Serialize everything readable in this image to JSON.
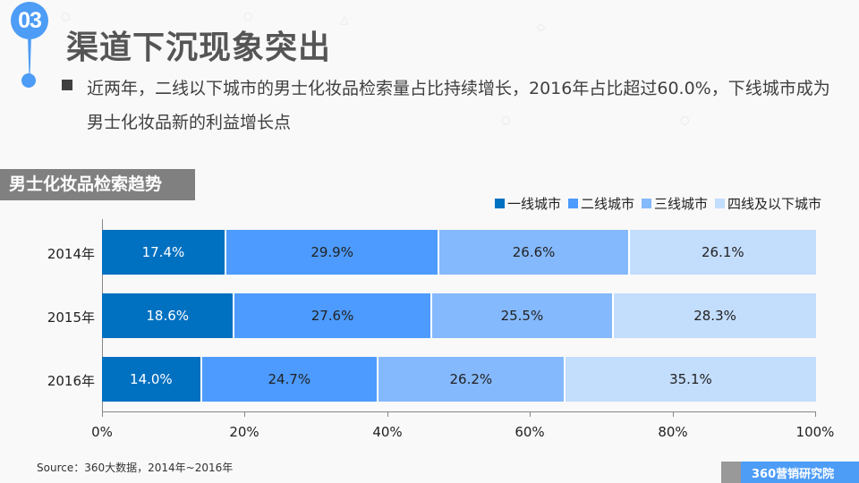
{
  "header": {
    "section_number": "03",
    "title": "渠道下沉现象突出",
    "description": "近两年，二线以下城市的男士化妆品检索量占比持续增长，2016年占比超过60.0%，下线城市成为男士化妆品新的利益增长点"
  },
  "chart_section_label": "男士化妆品检索趋势",
  "colors": {
    "tier1": "#0070c0",
    "tier2": "#4d9bff",
    "tier3": "#85b9fd",
    "tier4": "#c3ddfd",
    "accent": "#4d9cf6",
    "label_bg": "#808080"
  },
  "chart_data": {
    "type": "bar",
    "orientation": "horizontal",
    "stacked": true,
    "percent": true,
    "title": "男士化妆品检索趋势",
    "categories": [
      "2014年",
      "2015年",
      "2016年"
    ],
    "series": [
      {
        "name": "一线城市",
        "values": [
          17.4,
          18.6,
          14.0
        ]
      },
      {
        "name": "二线城市",
        "values": [
          29.9,
          27.6,
          24.7
        ]
      },
      {
        "name": "三线城市",
        "values": [
          26.6,
          25.5,
          26.2
        ]
      },
      {
        "name": "四线及以下城市",
        "values": [
          26.1,
          28.3,
          35.1
        ]
      }
    ],
    "xlabel": "",
    "ylabel": "",
    "xlim": [
      0,
      100
    ],
    "x_ticks": [
      "0%",
      "20%",
      "40%",
      "60%",
      "80%",
      "100%"
    ],
    "legend_position": "top-right",
    "grid": false,
    "labels": [
      [
        "17.4%",
        "29.9%",
        "26.6%",
        "26.1%"
      ],
      [
        "18.6%",
        "27.6%",
        "25.5%",
        "28.3%"
      ],
      [
        "14.0%",
        "24.7%",
        "26.2%",
        "35.1%"
      ]
    ]
  },
  "footer": {
    "source": "Source：360大数据，2014年~2016年",
    "brand": "360营销研究院"
  }
}
